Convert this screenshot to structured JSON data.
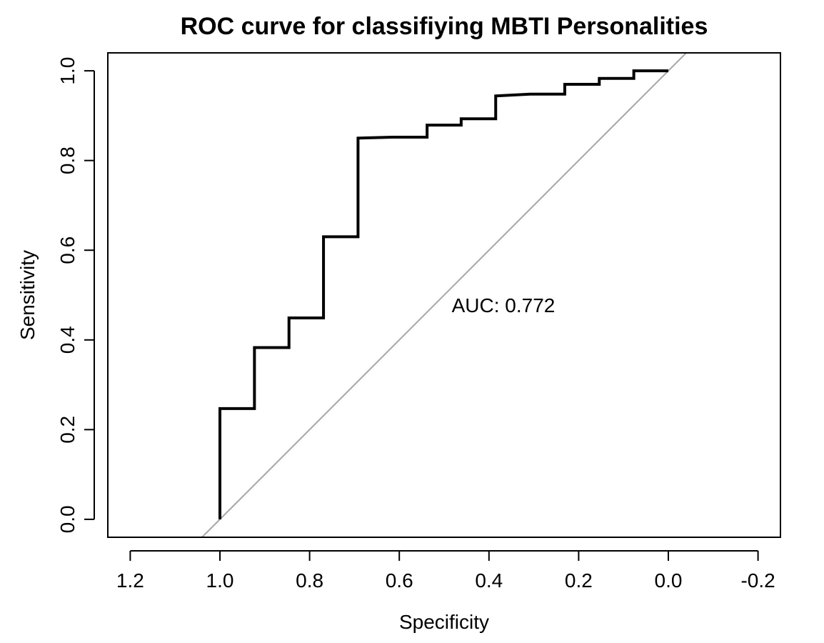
{
  "chart_data": {
    "type": "line",
    "title": "ROC curve for classifiying MBTI Personalities",
    "xlabel": "Specificity",
    "ylabel": "Sensitivity",
    "xlim": [
      1.25,
      -0.25
    ],
    "ylim": [
      -0.04,
      1.04
    ],
    "x_reversed": true,
    "xticks": [
      1.2,
      1.0,
      0.8,
      0.6,
      0.4,
      0.2,
      0.0,
      -0.2
    ],
    "xtick_labels": [
      "1.2",
      "1.0",
      "0.8",
      "0.6",
      "0.4",
      "0.2",
      "0.0",
      "-0.2"
    ],
    "yticks": [
      0.0,
      0.2,
      0.4,
      0.6,
      0.8,
      1.0
    ],
    "ytick_labels": [
      "0.0",
      "0.2",
      "0.4",
      "0.6",
      "0.8",
      "1.0"
    ],
    "grid": false,
    "annotation": "AUC: 0.772",
    "reference_line": {
      "x": [
        1.0,
        0.0
      ],
      "y": [
        0.0,
        1.0
      ],
      "color": "#a6a6a6"
    },
    "series": [
      {
        "color": "#000000",
        "x": [
          1.0,
          1.0,
          0.923,
          0.923,
          0.846,
          0.846,
          0.769,
          0.769,
          0.692,
          0.692,
          0.615,
          0.538,
          0.538,
          0.462,
          0.462,
          0.385,
          0.385,
          0.308,
          0.231,
          0.231,
          0.154,
          0.154,
          0.077,
          0.077,
          0.0
        ],
        "y": [
          0.0,
          0.247,
          0.247,
          0.383,
          0.383,
          0.449,
          0.449,
          0.63,
          0.63,
          0.85,
          0.852,
          0.852,
          0.879,
          0.879,
          0.893,
          0.893,
          0.944,
          0.948,
          0.948,
          0.97,
          0.97,
          0.983,
          0.983,
          1.0,
          1.0
        ]
      }
    ]
  }
}
